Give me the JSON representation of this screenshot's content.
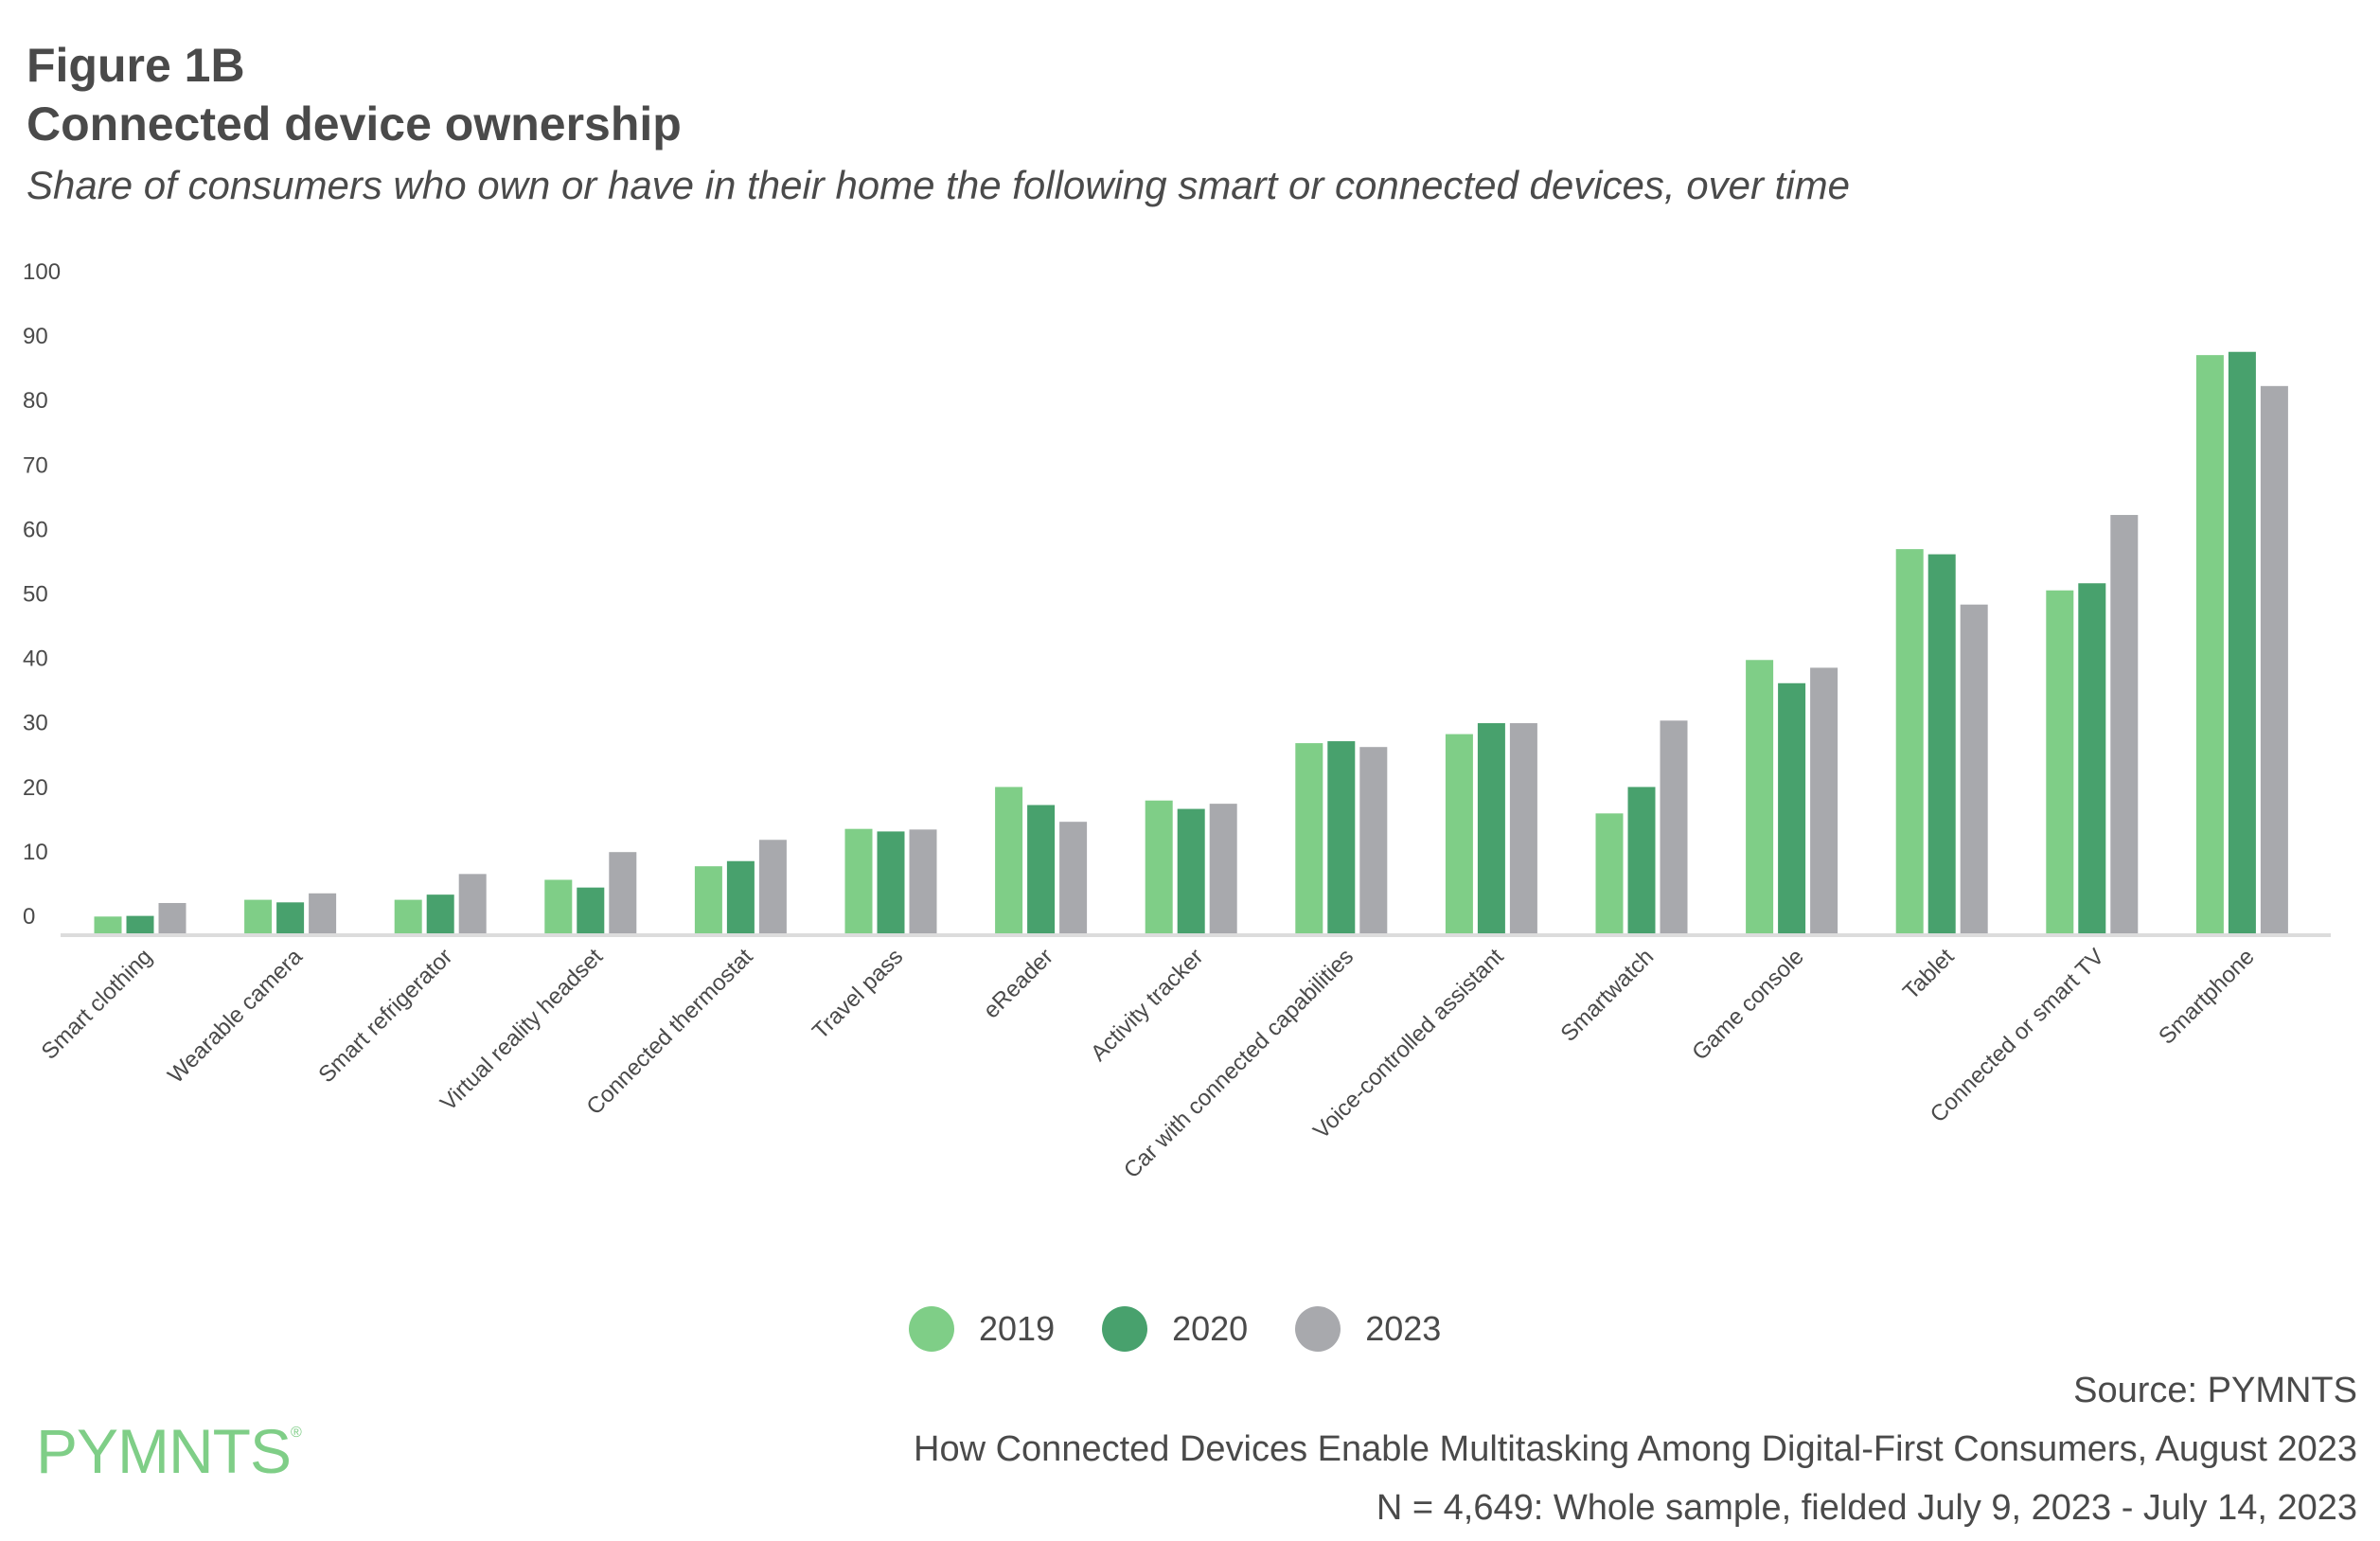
{
  "header": {
    "figure": "Figure 1B",
    "title": "Connected device ownership",
    "subtitle": "Share of consumers who own or have in their home the following smart or connected devices, over time"
  },
  "chart_data": {
    "type": "bar",
    "title": "Connected device ownership",
    "xlabel": "",
    "ylabel": "",
    "ylim": [
      0,
      100
    ],
    "yticks": [
      "0",
      "10",
      "20",
      "30",
      "40",
      "50",
      "60",
      "70",
      "80",
      "90",
      "100"
    ],
    "grid": false,
    "legend_position": "bottom-center",
    "categories": [
      "Smart clothing",
      "Wearable camera",
      "Smart refrigerator",
      "Virtual reality headset",
      "Connected thermostat",
      "Travel pass",
      "eReader",
      "Activity tracker",
      "Car with connected capabilities",
      "Voice-controlled assistant",
      "Smartwatch",
      "Game console",
      "Tablet",
      "Connected or smart TV",
      "Smartphone"
    ],
    "series": [
      {
        "name": "2019",
        "color": "#7fce87",
        "values": [
          2.6,
          5.2,
          5.2,
          8.3,
          10.4,
          16.2,
          22.7,
          20.6,
          29.5,
          30.9,
          18.6,
          42.4,
          59.6,
          53.2,
          89.7
        ]
      },
      {
        "name": "2020",
        "color": "#48a16d",
        "values": [
          2.7,
          4.8,
          6.0,
          7.1,
          11.2,
          15.8,
          19.9,
          19.3,
          29.8,
          32.6,
          22.7,
          38.8,
          58.8,
          54.3,
          90.2
        ]
      },
      {
        "name": "2023",
        "color": "#a8a9ad",
        "values": [
          4.7,
          6.2,
          9.2,
          12.6,
          14.5,
          16.1,
          17.3,
          20.1,
          28.9,
          32.6,
          33.0,
          41.2,
          51.0,
          64.9,
          84.9
        ]
      }
    ]
  },
  "footer": {
    "logo": "PYMNTS",
    "source": "Source: PYMNTS",
    "report": "How Connected Devices Enable Multitasking Among Digital-First Consumers, August 2023",
    "sample": "N = 4,649: Whole sample, fielded July 9, 2023 - July 14, 2023"
  }
}
